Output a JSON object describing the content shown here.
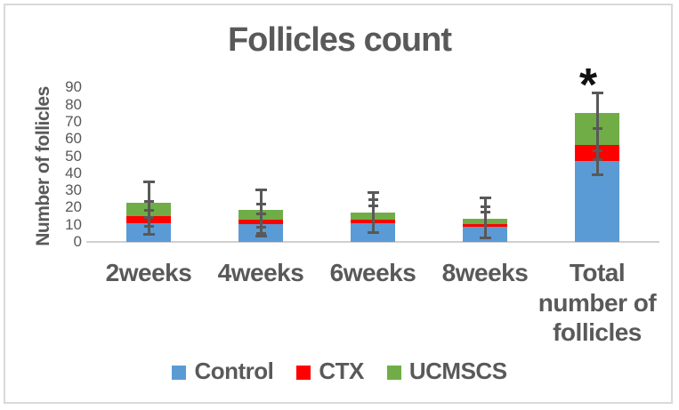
{
  "figure": {
    "title": "Follicles count",
    "y_axis_label": "Number of follicles",
    "significance_marker": "*"
  },
  "chart_data": {
    "type": "bar",
    "stacked": true,
    "title": "Follicles count",
    "xlabel": "",
    "ylabel": "Number of follicles",
    "ylim": [
      0,
      95
    ],
    "yticks": [
      0,
      10,
      20,
      30,
      40,
      50,
      60,
      70,
      80,
      90
    ],
    "grid": false,
    "legend_position": "bottom",
    "categories": [
      "2weeks",
      "4weeks",
      "6weeks",
      "8weeks",
      "Total number of follicles"
    ],
    "series": [
      {
        "name": "Control",
        "color": "#5B9BD5",
        "values": [
          11,
          10.5,
          11,
          9,
          47
        ]
      },
      {
        "name": "CTX",
        "color": "#FE0000",
        "values": [
          4,
          2.5,
          2,
          1.5,
          9.5
        ]
      },
      {
        "name": "UCMSCS",
        "color": "#70AD47",
        "values": [
          8,
          5.5,
          4,
          3,
          18.5
        ]
      }
    ],
    "stack_totals": [
      23,
      18.5,
      17,
      13.5,
      75
    ],
    "error_bar_caps": [
      [
        4.5,
        9,
        14,
        18.5,
        23.5,
        35
      ],
      [
        3.5,
        5,
        8.5,
        16.5,
        22,
        30.5
      ],
      [
        5.5,
        21,
        24.5,
        29
      ],
      [
        2.5,
        17.5,
        20.5,
        25.5
      ],
      [
        39,
        48,
        53,
        66,
        87
      ]
    ],
    "annotations": [
      {
        "text": "*",
        "category_index": 4,
        "meaning": "significant",
        "value": 92
      }
    ],
    "colors": {
      "text": "#595959",
      "error_bar": "#595959",
      "axis_line": "#D0D0D0",
      "annotation": "#111111",
      "border": "#D9D9D9"
    }
  }
}
